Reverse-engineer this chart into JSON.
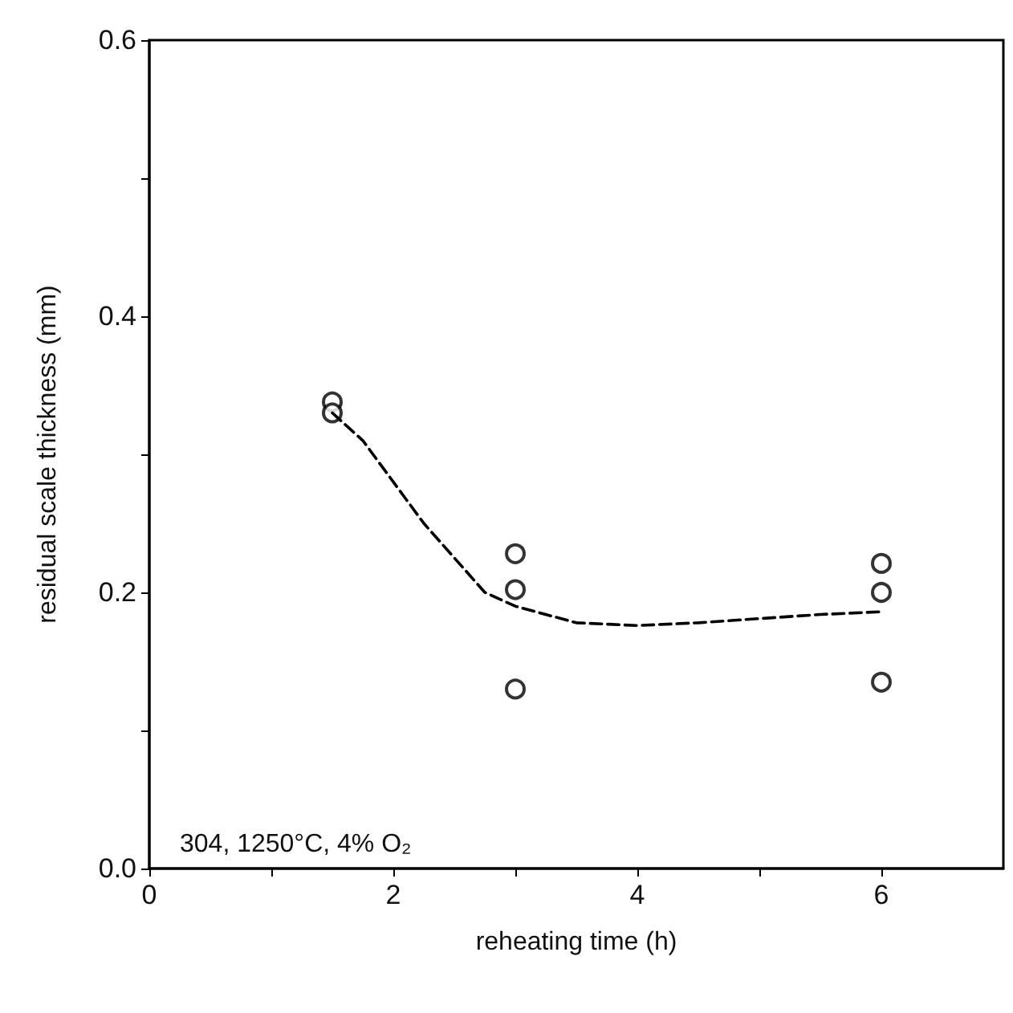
{
  "chart_data": {
    "type": "scatter",
    "xlabel": "reheating time (h)",
    "ylabel": "residual scale thickness (mm)",
    "annotations": [
      "304, 1250°C, 4% O₂"
    ],
    "xlim": [
      0,
      7
    ],
    "xticks": [
      0,
      {
        "value": 1,
        "label": null
      },
      2,
      {
        "value": 3,
        "label": null
      },
      4,
      {
        "value": 5,
        "label": null
      },
      6
    ],
    "ylim": [
      0,
      0.6
    ],
    "yticks": [
      {
        "value": 0,
        "label": "0.0"
      },
      {
        "value": 0.1,
        "label": null
      },
      0.2,
      {
        "value": 0.3,
        "label": null
      },
      0.4,
      {
        "value": 0.5,
        "label": null
      },
      0.6
    ],
    "grid": false,
    "series": [
      {
        "color": "#000000",
        "marker": "circle",
        "x": [
          1.5,
          1.5,
          3,
          3,
          3,
          6,
          6,
          6
        ],
        "values": [
          0.338,
          0.33,
          0.228,
          0.202,
          0.13,
          0.221,
          0.2,
          0.135
        ]
      },
      {
        "type": "line",
        "color": "#000000",
        "marker": "none",
        "line_style": "dashed",
        "x": [
          1.5,
          1.75,
          2,
          2.25,
          2.5,
          2.75,
          3,
          3.5,
          4,
          4.5,
          5,
          5.5,
          6
        ],
        "values": [
          0.33,
          0.31,
          0.28,
          0.25,
          0.225,
          0.2,
          0.19,
          0.178,
          0.176,
          0.178,
          0.181,
          0.184,
          0.186
        ]
      }
    ]
  }
}
